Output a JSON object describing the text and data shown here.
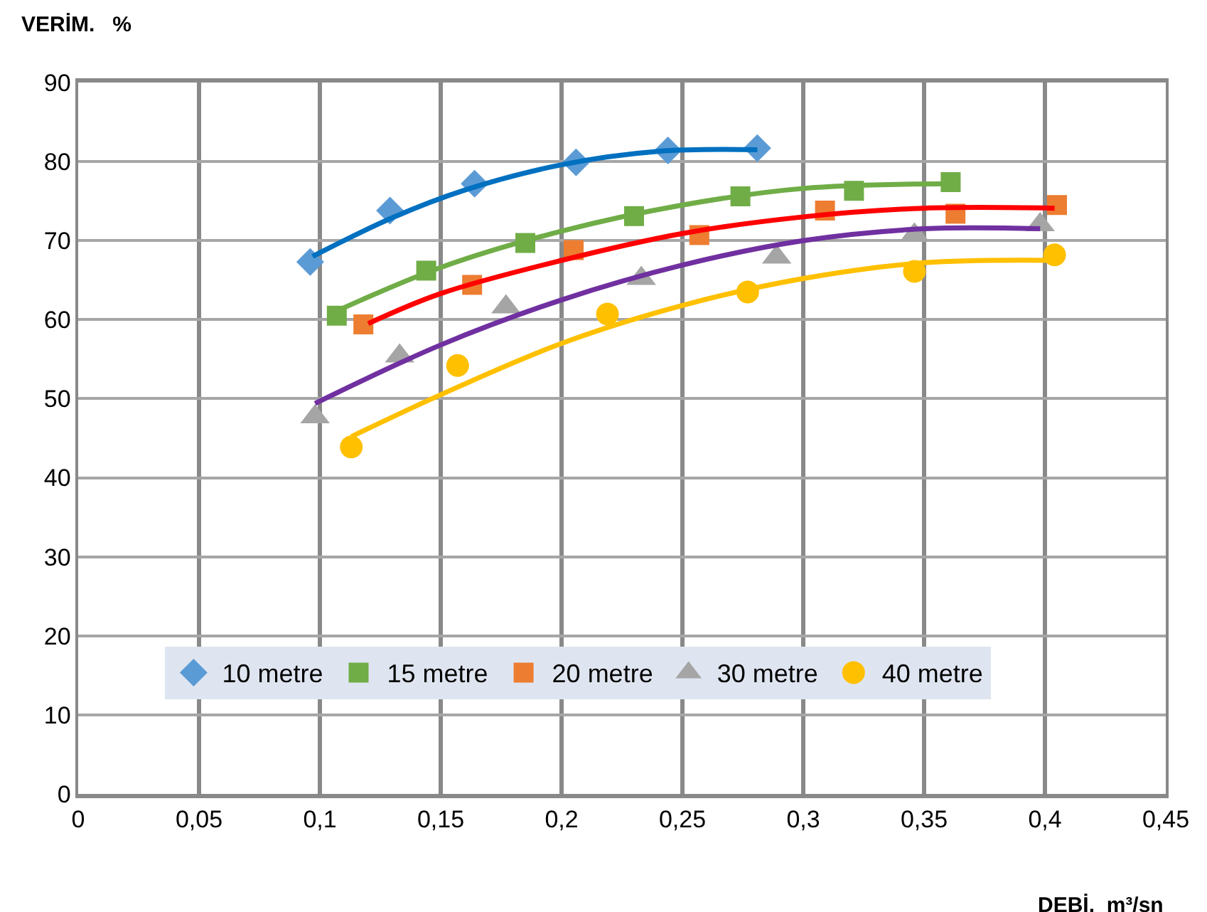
{
  "chart_data": {
    "type": "scatter",
    "xlabel": "DEBİ.  m³/sn",
    "ylabel": "VERİM.   %",
    "xlim": [
      0,
      0.45
    ],
    "ylim": [
      0,
      90
    ],
    "xticks": [
      0,
      {
        "value": 0.05,
        "label": "0,05"
      },
      {
        "value": 0.1,
        "label": "0,1"
      },
      {
        "value": 0.15,
        "label": "0,15"
      },
      {
        "value": 0.2,
        "label": "0,2"
      },
      {
        "value": 0.25,
        "label": "0,25"
      },
      {
        "value": 0.3,
        "label": "0,3"
      },
      {
        "value": 0.35,
        "label": "0,35"
      },
      {
        "value": 0.4,
        "label": "0,4"
      },
      {
        "value": 0.45,
        "label": "0,45"
      }
    ],
    "yticks": [
      0,
      10,
      20,
      30,
      40,
      50,
      60,
      70,
      80,
      90
    ],
    "grid": true,
    "legend": "bottom",
    "series": [
      {
        "name": "10 metre",
        "color": "#5b9bd5",
        "marker": "diamond",
        "x": [
          0.096,
          0.129,
          0.164,
          0.206,
          0.244,
          0.281
        ],
        "values": [
          67.3,
          73.8,
          77.2,
          79.9,
          81.4,
          81.7
        ]
      },
      {
        "name": "15 metre",
        "color": "#70ad47",
        "marker": "square",
        "x": [
          0.107,
          0.144,
          0.185,
          0.23,
          0.274,
          0.321,
          0.361
        ],
        "values": [
          60.5,
          66.2,
          69.7,
          73.1,
          75.6,
          76.3,
          77.4
        ]
      },
      {
        "name": "20 metre",
        "color": "#ed7d31",
        "marker": "square",
        "x": [
          0.118,
          0.163,
          0.205,
          0.257,
          0.309,
          0.363,
          0.405
        ],
        "values": [
          59.4,
          64.4,
          68.8,
          70.7,
          73.8,
          73.4,
          74.5
        ]
      },
      {
        "name": "30 metre",
        "color": "#a5a5a5",
        "marker": "triangle",
        "x": [
          0.098,
          0.133,
          0.177,
          0.233,
          0.289,
          0.346,
          0.398
        ],
        "values": [
          47.7,
          55.4,
          61.6,
          65.2,
          67.9,
          70.7,
          72.0
        ]
      },
      {
        "name": "40 metre",
        "color": "#ffc000",
        "marker": "circle",
        "x": [
          0.113,
          0.157,
          0.219,
          0.277,
          0.346,
          0.404
        ],
        "values": [
          43.9,
          54.2,
          60.7,
          63.5,
          66.1,
          68.2
        ]
      },
      {
        "type": "line",
        "color": "#0070c0",
        "x": [
          0.097,
          0.13,
          0.16,
          0.2,
          0.24,
          0.281
        ],
        "values": [
          68.0,
          72.9,
          76.4,
          79.6,
          81.3,
          81.5
        ]
      },
      {
        "type": "line",
        "color": "#70ad47",
        "x": [
          0.107,
          0.15,
          0.2,
          0.25,
          0.3,
          0.361
        ],
        "values": [
          61.1,
          66.6,
          71.2,
          74.5,
          76.6,
          77.2
        ]
      },
      {
        "type": "line",
        "color": "#ff0000",
        "x": [
          0.12,
          0.15,
          0.2,
          0.25,
          0.3,
          0.35,
          0.404
        ],
        "values": [
          59.5,
          63.3,
          67.5,
          70.9,
          73.0,
          74.1,
          74.1
        ]
      },
      {
        "type": "line",
        "color": "#7030a0",
        "x": [
          0.098,
          0.15,
          0.2,
          0.25,
          0.3,
          0.35,
          0.398
        ],
        "values": [
          49.4,
          56.8,
          62.5,
          66.9,
          70.0,
          71.5,
          71.5
        ]
      },
      {
        "type": "line",
        "color": "#ffc000",
        "x": [
          0.113,
          0.15,
          0.2,
          0.25,
          0.3,
          0.35,
          0.404
        ],
        "values": [
          45.2,
          50.5,
          57.0,
          61.8,
          65.2,
          67.2,
          67.5
        ]
      }
    ]
  }
}
